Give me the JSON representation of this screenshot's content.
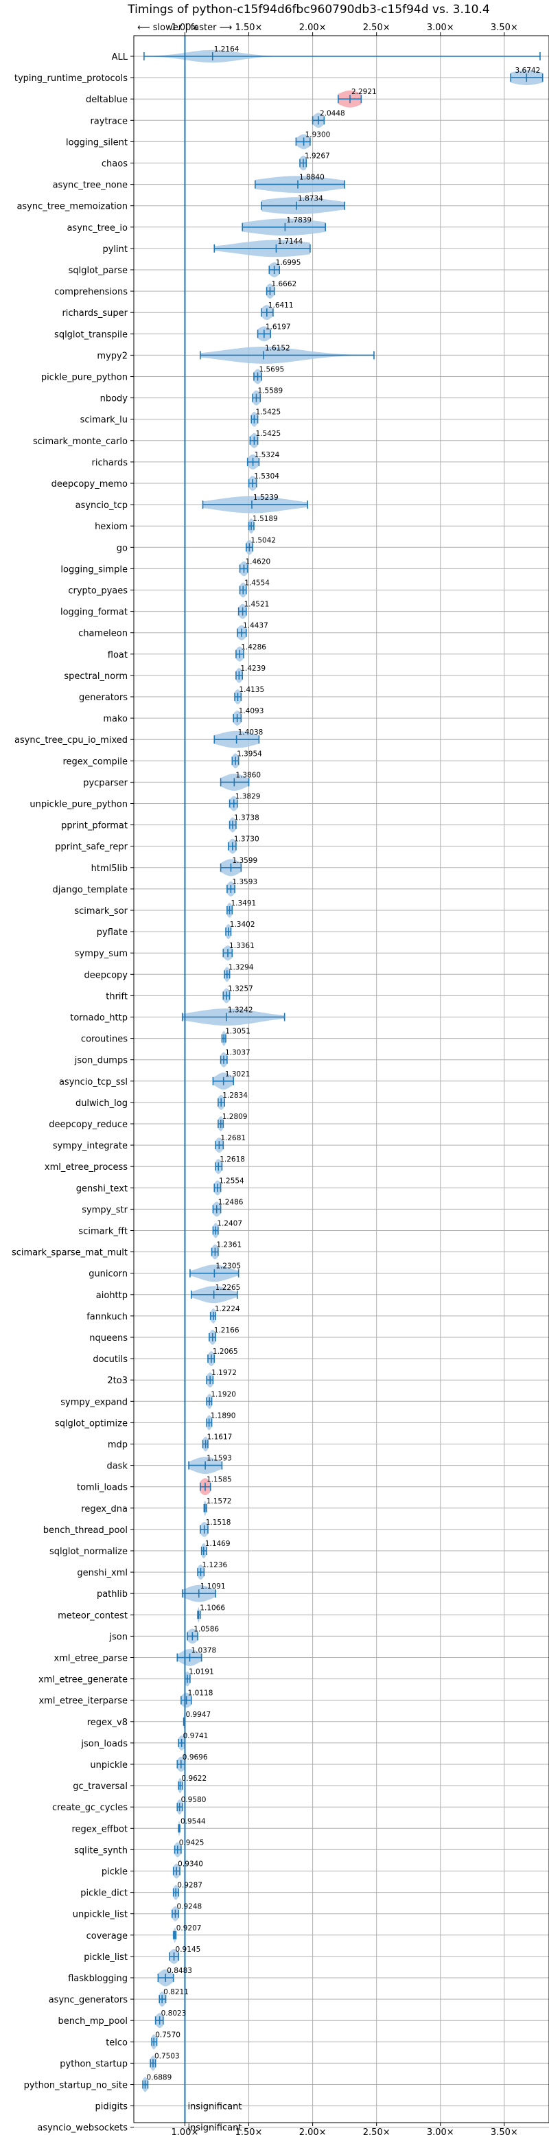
{
  "chart_data": {
    "type": "violin",
    "title": "Timings of python-c15f94d6fbc960790db3-c15f94d vs. 3.10.4",
    "direction_label": "⟵ slower | faster ⟶",
    "xlim": [
      0.6,
      3.85
    ],
    "xticks": [
      1.0,
      1.5,
      2.0,
      2.5,
      3.0,
      3.5
    ],
    "xtick_labels": [
      "1.00×",
      "1.50×",
      "2.00×",
      "2.50×",
      "3.00×",
      "3.50×"
    ],
    "reference_line": 1.0,
    "grid": true,
    "insignificant_text": "insignificant",
    "colors": {
      "violin": "#a9c9e6",
      "violin_highlight": "#f4a6ae",
      "line": "#1f77b4"
    },
    "benchmarks": [
      {
        "name": "ALL",
        "value": 1.2164,
        "label": "1.2164",
        "min": 0.68,
        "max": 3.78,
        "spread": 0.2,
        "thick": 0.3
      },
      {
        "name": "typing_runtime_protocols",
        "value": 3.6742,
        "label": "3.6742",
        "min": 3.55,
        "max": 3.8,
        "spread": 0.14,
        "thick": 0.35
      },
      {
        "name": "deltablue",
        "value": 2.2921,
        "label": "2.2921",
        "min": 2.2,
        "max": 2.38,
        "spread": 0.09,
        "thick": 0.4,
        "highlight": true
      },
      {
        "name": "raytrace",
        "value": 2.0448,
        "label": "2.0448",
        "min": 2.0,
        "max": 2.09,
        "spread": 0.04,
        "thick": 0.35
      },
      {
        "name": "logging_silent",
        "value": 1.93,
        "label": "1.9300",
        "min": 1.87,
        "max": 1.98,
        "spread": 0.05,
        "thick": 0.35
      },
      {
        "name": "chaos",
        "value": 1.9267,
        "label": "1.9267",
        "min": 1.9,
        "max": 1.95,
        "spread": 0.03,
        "thick": 0.35
      },
      {
        "name": "async_tree_none",
        "value": 1.884,
        "label": "1.8840",
        "min": 1.55,
        "max": 2.25,
        "spread": 0.3,
        "thick": 0.4
      },
      {
        "name": "async_tree_memoization",
        "value": 1.8734,
        "label": "1.8734",
        "min": 1.6,
        "max": 2.25,
        "spread": 0.3,
        "thick": 0.4
      },
      {
        "name": "async_tree_io",
        "value": 1.7839,
        "label": "1.7839",
        "min": 1.45,
        "max": 2.1,
        "spread": 0.3,
        "thick": 0.4
      },
      {
        "name": "pylint",
        "value": 1.7144,
        "label": "1.7144",
        "min": 1.23,
        "max": 1.98,
        "spread": 0.3,
        "thick": 0.4
      },
      {
        "name": "sqlglot_parse",
        "value": 1.6995,
        "label": "1.6995",
        "min": 1.66,
        "max": 1.74,
        "spread": 0.04,
        "thick": 0.35
      },
      {
        "name": "comprehensions",
        "value": 1.6662,
        "label": "1.6662",
        "min": 1.64,
        "max": 1.7,
        "spread": 0.03,
        "thick": 0.35
      },
      {
        "name": "richards_super",
        "value": 1.6411,
        "label": "1.6411",
        "min": 1.6,
        "max": 1.69,
        "spread": 0.04,
        "thick": 0.35
      },
      {
        "name": "sqlglot_transpile",
        "value": 1.6197,
        "label": "1.6197",
        "min": 1.57,
        "max": 1.67,
        "spread": 0.05,
        "thick": 0.35
      },
      {
        "name": "mypy2",
        "value": 1.6152,
        "label": "1.6152",
        "min": 1.12,
        "max": 2.48,
        "spread": 0.3,
        "thick": 0.4
      },
      {
        "name": "pickle_pure_python",
        "value": 1.5695,
        "label": "1.5695",
        "min": 1.54,
        "max": 1.6,
        "spread": 0.03,
        "thick": 0.35
      },
      {
        "name": "nbody",
        "value": 1.5589,
        "label": "1.5589",
        "min": 1.53,
        "max": 1.59,
        "spread": 0.03,
        "thick": 0.35
      },
      {
        "name": "scimark_lu",
        "value": 1.5425,
        "label": "1.5425",
        "min": 1.52,
        "max": 1.57,
        "spread": 0.025,
        "thick": 0.35
      },
      {
        "name": "scimark_monte_carlo",
        "value": 1.5425,
        "label": "1.5425",
        "min": 1.51,
        "max": 1.57,
        "spread": 0.03,
        "thick": 0.35
      },
      {
        "name": "richards",
        "value": 1.5324,
        "label": "1.5324",
        "min": 1.49,
        "max": 1.58,
        "spread": 0.04,
        "thick": 0.35
      },
      {
        "name": "deepcopy_memo",
        "value": 1.5304,
        "label": "1.5304",
        "min": 1.5,
        "max": 1.56,
        "spread": 0.03,
        "thick": 0.35
      },
      {
        "name": "asyncio_tcp",
        "value": 1.5239,
        "label": "1.5239",
        "min": 1.14,
        "max": 1.96,
        "spread": 0.28,
        "thick": 0.4
      },
      {
        "name": "hexiom",
        "value": 1.5189,
        "label": "1.5189",
        "min": 1.5,
        "max": 1.54,
        "spread": 0.02,
        "thick": 0.35
      },
      {
        "name": "go",
        "value": 1.5042,
        "label": "1.5042",
        "min": 1.48,
        "max": 1.53,
        "spread": 0.025,
        "thick": 0.35
      },
      {
        "name": "logging_simple",
        "value": 1.462,
        "label": "1.4620",
        "min": 1.43,
        "max": 1.49,
        "spread": 0.03,
        "thick": 0.35
      },
      {
        "name": "crypto_pyaes",
        "value": 1.4554,
        "label": "1.4554",
        "min": 1.43,
        "max": 1.48,
        "spread": 0.025,
        "thick": 0.35
      },
      {
        "name": "logging_format",
        "value": 1.4521,
        "label": "1.4521",
        "min": 1.42,
        "max": 1.48,
        "spread": 0.03,
        "thick": 0.35
      },
      {
        "name": "chameleon",
        "value": 1.4437,
        "label": "1.4437",
        "min": 1.41,
        "max": 1.48,
        "spread": 0.035,
        "thick": 0.35
      },
      {
        "name": "float",
        "value": 1.4286,
        "label": "1.4286",
        "min": 1.4,
        "max": 1.46,
        "spread": 0.03,
        "thick": 0.35
      },
      {
        "name": "spectral_norm",
        "value": 1.4239,
        "label": "1.4239",
        "min": 1.4,
        "max": 1.45,
        "spread": 0.025,
        "thick": 0.35
      },
      {
        "name": "generators",
        "value": 1.4135,
        "label": "1.4135",
        "min": 1.39,
        "max": 1.44,
        "spread": 0.025,
        "thick": 0.35
      },
      {
        "name": "mako",
        "value": 1.4093,
        "label": "1.4093",
        "min": 1.38,
        "max": 1.44,
        "spread": 0.03,
        "thick": 0.35
      },
      {
        "name": "async_tree_cpu_io_mixed",
        "value": 1.4038,
        "label": "1.4038",
        "min": 1.23,
        "max": 1.58,
        "spread": 0.15,
        "thick": 0.4
      },
      {
        "name": "regex_compile",
        "value": 1.3954,
        "label": "1.3954",
        "min": 1.37,
        "max": 1.42,
        "spread": 0.025,
        "thick": 0.35
      },
      {
        "name": "pycparser",
        "value": 1.386,
        "label": "1.3860",
        "min": 1.28,
        "max": 1.5,
        "spread": 0.09,
        "thick": 0.4
      },
      {
        "name": "unpickle_pure_python",
        "value": 1.3829,
        "label": "1.3829",
        "min": 1.35,
        "max": 1.41,
        "spread": 0.03,
        "thick": 0.35
      },
      {
        "name": "pprint_pformat",
        "value": 1.3738,
        "label": "1.3738",
        "min": 1.35,
        "max": 1.4,
        "spread": 0.025,
        "thick": 0.35
      },
      {
        "name": "pprint_safe_repr",
        "value": 1.373,
        "label": "1.3730",
        "min": 1.34,
        "max": 1.4,
        "spread": 0.03,
        "thick": 0.35
      },
      {
        "name": "html5lib",
        "value": 1.3599,
        "label": "1.3599",
        "min": 1.28,
        "max": 1.44,
        "spread": 0.07,
        "thick": 0.4
      },
      {
        "name": "django_template",
        "value": 1.3593,
        "label": "1.3593",
        "min": 1.33,
        "max": 1.39,
        "spread": 0.03,
        "thick": 0.35
      },
      {
        "name": "scimark_sor",
        "value": 1.3491,
        "label": "1.3491",
        "min": 1.33,
        "max": 1.37,
        "spread": 0.02,
        "thick": 0.35
      },
      {
        "name": "pyflate",
        "value": 1.3402,
        "label": "1.3402",
        "min": 1.32,
        "max": 1.36,
        "spread": 0.02,
        "thick": 0.35
      },
      {
        "name": "sympy_sum",
        "value": 1.3361,
        "label": "1.3361",
        "min": 1.3,
        "max": 1.37,
        "spread": 0.035,
        "thick": 0.35
      },
      {
        "name": "deepcopy",
        "value": 1.3294,
        "label": "1.3294",
        "min": 1.31,
        "max": 1.35,
        "spread": 0.02,
        "thick": 0.35
      },
      {
        "name": "thrift",
        "value": 1.3257,
        "label": "1.3257",
        "min": 1.3,
        "max": 1.35,
        "spread": 0.025,
        "thick": 0.35
      },
      {
        "name": "tornado_http",
        "value": 1.3242,
        "label": "1.3242",
        "min": 0.98,
        "max": 1.78,
        "spread": 0.25,
        "thick": 0.4
      },
      {
        "name": "coroutines",
        "value": 1.3051,
        "label": "1.3051",
        "min": 1.29,
        "max": 1.32,
        "spread": 0.015,
        "thick": 0.35
      },
      {
        "name": "json_dumps",
        "value": 1.3037,
        "label": "1.3037",
        "min": 1.28,
        "max": 1.33,
        "spread": 0.025,
        "thick": 0.35
      },
      {
        "name": "asyncio_tcp_ssl",
        "value": 1.3021,
        "label": "1.3021",
        "min": 1.22,
        "max": 1.38,
        "spread": 0.06,
        "thick": 0.4
      },
      {
        "name": "dulwich_log",
        "value": 1.2834,
        "label": "1.2834",
        "min": 1.26,
        "max": 1.31,
        "spread": 0.025,
        "thick": 0.35
      },
      {
        "name": "deepcopy_reduce",
        "value": 1.2809,
        "label": "1.2809",
        "min": 1.26,
        "max": 1.3,
        "spread": 0.02,
        "thick": 0.35
      },
      {
        "name": "sympy_integrate",
        "value": 1.2681,
        "label": "1.2681",
        "min": 1.24,
        "max": 1.3,
        "spread": 0.03,
        "thick": 0.35
      },
      {
        "name": "xml_etree_process",
        "value": 1.2618,
        "label": "1.2618",
        "min": 1.24,
        "max": 1.29,
        "spread": 0.025,
        "thick": 0.35
      },
      {
        "name": "genshi_text",
        "value": 1.2554,
        "label": "1.2554",
        "min": 1.23,
        "max": 1.28,
        "spread": 0.025,
        "thick": 0.35
      },
      {
        "name": "sympy_str",
        "value": 1.2486,
        "label": "1.2486",
        "min": 1.22,
        "max": 1.28,
        "spread": 0.03,
        "thick": 0.35
      },
      {
        "name": "scimark_fft",
        "value": 1.2407,
        "label": "1.2407",
        "min": 1.22,
        "max": 1.26,
        "spread": 0.02,
        "thick": 0.35
      },
      {
        "name": "scimark_sparse_mat_mult",
        "value": 1.2361,
        "label": "1.2361",
        "min": 1.21,
        "max": 1.26,
        "spread": 0.025,
        "thick": 0.35
      },
      {
        "name": "gunicorn",
        "value": 1.2305,
        "label": "1.2305",
        "min": 1.04,
        "max": 1.42,
        "spread": 0.12,
        "thick": 0.4
      },
      {
        "name": "aiohttp",
        "value": 1.2265,
        "label": "1.2265",
        "min": 1.05,
        "max": 1.41,
        "spread": 0.12,
        "thick": 0.4
      },
      {
        "name": "fannkuch",
        "value": 1.2224,
        "label": "1.2224",
        "min": 1.2,
        "max": 1.24,
        "spread": 0.02,
        "thick": 0.35
      },
      {
        "name": "nqueens",
        "value": 1.2166,
        "label": "1.2166",
        "min": 1.19,
        "max": 1.24,
        "spread": 0.025,
        "thick": 0.35
      },
      {
        "name": "docutils",
        "value": 1.2065,
        "label": "1.2065",
        "min": 1.18,
        "max": 1.23,
        "spread": 0.025,
        "thick": 0.35
      },
      {
        "name": "2to3",
        "value": 1.1972,
        "label": "1.1972",
        "min": 1.17,
        "max": 1.22,
        "spread": 0.025,
        "thick": 0.35
      },
      {
        "name": "sympy_expand",
        "value": 1.192,
        "label": "1.1920",
        "min": 1.17,
        "max": 1.21,
        "spread": 0.02,
        "thick": 0.35
      },
      {
        "name": "sqlglot_optimize",
        "value": 1.189,
        "label": "1.1890",
        "min": 1.17,
        "max": 1.21,
        "spread": 0.02,
        "thick": 0.35
      },
      {
        "name": "mdp",
        "value": 1.1617,
        "label": "1.1617",
        "min": 1.14,
        "max": 1.18,
        "spread": 0.02,
        "thick": 0.35
      },
      {
        "name": "dask",
        "value": 1.1593,
        "label": "1.1593",
        "min": 1.03,
        "max": 1.29,
        "spread": 0.1,
        "thick": 0.4
      },
      {
        "name": "tomli_loads",
        "value": 1.1585,
        "label": "1.1585",
        "min": 1.12,
        "max": 1.2,
        "spread": 0.04,
        "thick": 0.4,
        "highlight": true
      },
      {
        "name": "regex_dna",
        "value": 1.1572,
        "label": "1.1572",
        "min": 1.15,
        "max": 1.17,
        "spread": 0.01,
        "thick": 0.35
      },
      {
        "name": "bench_thread_pool",
        "value": 1.1518,
        "label": "1.1518",
        "min": 1.12,
        "max": 1.18,
        "spread": 0.03,
        "thick": 0.35
      },
      {
        "name": "sqlglot_normalize",
        "value": 1.1469,
        "label": "1.1469",
        "min": 1.13,
        "max": 1.17,
        "spread": 0.02,
        "thick": 0.35
      },
      {
        "name": "genshi_xml",
        "value": 1.1236,
        "label": "1.1236",
        "min": 1.1,
        "max": 1.15,
        "spread": 0.025,
        "thick": 0.35
      },
      {
        "name": "pathlib",
        "value": 1.1091,
        "label": "1.1091",
        "min": 0.98,
        "max": 1.24,
        "spread": 0.1,
        "thick": 0.4
      },
      {
        "name": "meteor_contest",
        "value": 1.1066,
        "label": "1.1066",
        "min": 1.1,
        "max": 1.12,
        "spread": 0.008,
        "thick": 0.35
      },
      {
        "name": "json",
        "value": 1.0586,
        "label": "1.0586",
        "min": 1.02,
        "max": 1.1,
        "spread": 0.04,
        "thick": 0.35
      },
      {
        "name": "xml_etree_parse",
        "value": 1.0378,
        "label": "1.0378",
        "min": 0.94,
        "max": 1.13,
        "spread": 0.07,
        "thick": 0.4
      },
      {
        "name": "xml_etree_generate",
        "value": 1.0191,
        "label": "1.0191",
        "min": 1.0,
        "max": 1.04,
        "spread": 0.02,
        "thick": 0.35
      },
      {
        "name": "xml_etree_iterparse",
        "value": 1.0118,
        "label": "1.0118",
        "min": 0.97,
        "max": 1.05,
        "spread": 0.04,
        "thick": 0.35
      },
      {
        "name": "regex_v8",
        "value": 0.9947,
        "label": "0.9947",
        "min": 0.99,
        "max": 1.0,
        "spread": 0.005,
        "thick": 0.35
      },
      {
        "name": "json_loads",
        "value": 0.9741,
        "label": "0.9741",
        "min": 0.95,
        "max": 1.0,
        "spread": 0.025,
        "thick": 0.35
      },
      {
        "name": "unpickle",
        "value": 0.9696,
        "label": "0.9696",
        "min": 0.94,
        "max": 1.0,
        "spread": 0.03,
        "thick": 0.35
      },
      {
        "name": "gc_traversal",
        "value": 0.9622,
        "label": "0.9622",
        "min": 0.95,
        "max": 0.98,
        "spread": 0.015,
        "thick": 0.35
      },
      {
        "name": "create_gc_cycles",
        "value": 0.958,
        "label": "0.9580",
        "min": 0.94,
        "max": 0.98,
        "spread": 0.02,
        "thick": 0.35
      },
      {
        "name": "regex_effbot",
        "value": 0.9544,
        "label": "0.9544",
        "min": 0.95,
        "max": 0.96,
        "spread": 0.006,
        "thick": 0.35
      },
      {
        "name": "sqlite_synth",
        "value": 0.9425,
        "label": "0.9425",
        "min": 0.92,
        "max": 0.97,
        "spread": 0.025,
        "thick": 0.35
      },
      {
        "name": "pickle",
        "value": 0.934,
        "label": "0.9340",
        "min": 0.91,
        "max": 0.96,
        "spread": 0.025,
        "thick": 0.35
      },
      {
        "name": "pickle_dict",
        "value": 0.9287,
        "label": "0.9287",
        "min": 0.91,
        "max": 0.95,
        "spread": 0.02,
        "thick": 0.35
      },
      {
        "name": "unpickle_list",
        "value": 0.9248,
        "label": "0.9248",
        "min": 0.9,
        "max": 0.95,
        "spread": 0.025,
        "thick": 0.35
      },
      {
        "name": "coverage",
        "value": 0.9207,
        "label": "0.9207",
        "min": 0.91,
        "max": 0.93,
        "spread": 0.01,
        "thick": 0.35
      },
      {
        "name": "pickle_list",
        "value": 0.9145,
        "label": "0.9145",
        "min": 0.88,
        "max": 0.95,
        "spread": 0.035,
        "thick": 0.35
      },
      {
        "name": "flaskblogging",
        "value": 0.8483,
        "label": "0.8483",
        "min": 0.79,
        "max": 0.91,
        "spread": 0.05,
        "thick": 0.4
      },
      {
        "name": "async_generators",
        "value": 0.8211,
        "label": "0.8211",
        "min": 0.8,
        "max": 0.85,
        "spread": 0.025,
        "thick": 0.35
      },
      {
        "name": "bench_mp_pool",
        "value": 0.8023,
        "label": "0.8023",
        "min": 0.77,
        "max": 0.83,
        "spread": 0.03,
        "thick": 0.35
      },
      {
        "name": "telco",
        "value": 0.757,
        "label": "0.7570",
        "min": 0.74,
        "max": 0.78,
        "spread": 0.02,
        "thick": 0.35
      },
      {
        "name": "python_startup",
        "value": 0.7503,
        "label": "0.7503",
        "min": 0.73,
        "max": 0.77,
        "spread": 0.02,
        "thick": 0.35
      },
      {
        "name": "python_startup_no_site",
        "value": 0.6889,
        "label": "0.6889",
        "min": 0.67,
        "max": 0.71,
        "spread": 0.02,
        "thick": 0.35
      },
      {
        "name": "pidigits",
        "insignificant": true
      },
      {
        "name": "asyncio_websockets",
        "insignificant": true
      }
    ]
  }
}
